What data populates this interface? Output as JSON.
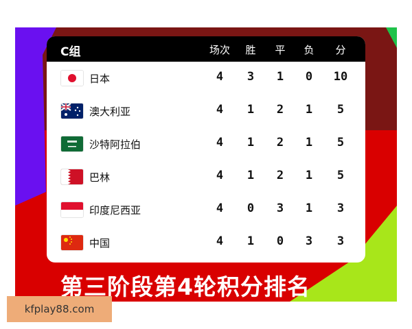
{
  "group": "C组",
  "headers": [
    "场次",
    "胜",
    "平",
    "负",
    "分"
  ],
  "rows": [
    {
      "team": "日本",
      "flag": "japan-flag",
      "stats": [
        "4",
        "3",
        "1",
        "0",
        "10"
      ]
    },
    {
      "team": "澳大利亚",
      "flag": "australia-flag",
      "stats": [
        "4",
        "1",
        "2",
        "1",
        "5"
      ]
    },
    {
      "team": "沙特阿拉伯",
      "flag": "saudi-arabia-flag",
      "stats": [
        "4",
        "1",
        "2",
        "1",
        "5"
      ]
    },
    {
      "team": "巴林",
      "flag": "bahrain-flag",
      "stats": [
        "4",
        "1",
        "2",
        "1",
        "5"
      ]
    },
    {
      "team": "印度尼西亚",
      "flag": "indonesia-flag",
      "stats": [
        "4",
        "0",
        "3",
        "1",
        "3"
      ]
    },
    {
      "team": "中国",
      "flag": "china-flag",
      "stats": [
        "4",
        "1",
        "0",
        "3",
        "3"
      ]
    }
  ],
  "title": "第三阶段第4轮积分排名",
  "watermark": "kfplay88.com",
  "colors": {
    "red": "#d90000",
    "dark_red": "#7a1614",
    "purple": "#6a10f0",
    "green": "#1fc24a",
    "lime": "#a8e61a"
  }
}
